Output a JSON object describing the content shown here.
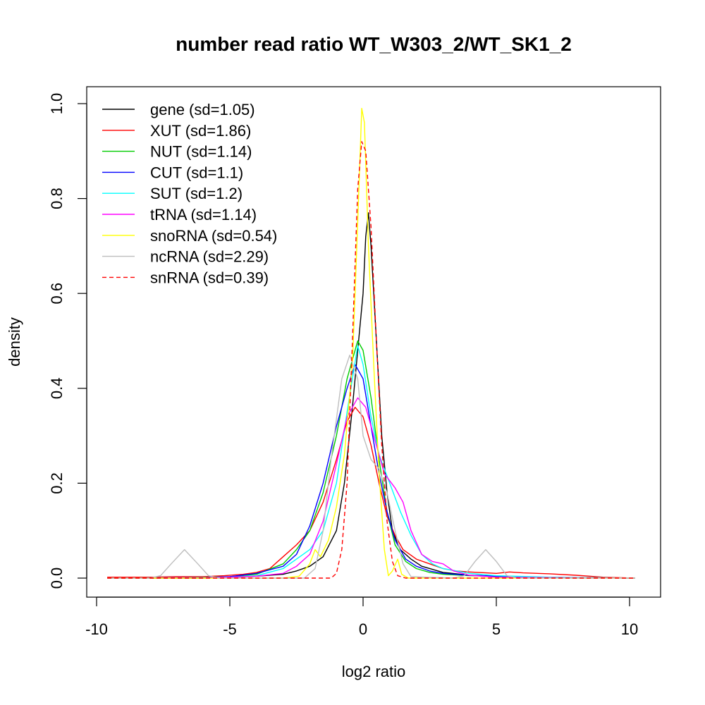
{
  "chart_data": {
    "type": "line",
    "title": "number read ratio WT_W303_2/WT_SK1_2",
    "xlabel": "log2 ratio",
    "ylabel": "density",
    "xlim": [
      -10,
      10
    ],
    "ylim": [
      0,
      1.0
    ],
    "x_ticks": [
      -10,
      -5,
      0,
      5,
      10
    ],
    "y_ticks": [
      0.0,
      0.2,
      0.4,
      0.6,
      0.8,
      1.0
    ],
    "x_tick_labels": [
      "-10",
      "-5",
      "0",
      "5",
      "10"
    ],
    "y_tick_labels": [
      "0.0",
      "0.2",
      "0.4",
      "0.6",
      "0.8",
      "1.0"
    ],
    "grid": false,
    "legend_position": "top-left",
    "series": [
      {
        "name": "gene (sd=1.05)",
        "color": "#000000",
        "dash": "solid",
        "points": [
          [
            -9.6,
            0.0
          ],
          [
            -6,
            0.0
          ],
          [
            -5,
            0.002
          ],
          [
            -4,
            0.004
          ],
          [
            -3,
            0.008
          ],
          [
            -2.5,
            0.015
          ],
          [
            -2,
            0.025
          ],
          [
            -1.5,
            0.045
          ],
          [
            -1,
            0.1
          ],
          [
            -0.7,
            0.2
          ],
          [
            -0.4,
            0.36
          ],
          [
            -0.2,
            0.48
          ],
          [
            0,
            0.6
          ],
          [
            0.1,
            0.72
          ],
          [
            0.2,
            0.77
          ],
          [
            0.3,
            0.7
          ],
          [
            0.5,
            0.5
          ],
          [
            0.7,
            0.3
          ],
          [
            0.9,
            0.18
          ],
          [
            1.1,
            0.1
          ],
          [
            1.4,
            0.06
          ],
          [
            1.8,
            0.04
          ],
          [
            2.2,
            0.025
          ],
          [
            3,
            0.012
          ],
          [
            4,
            0.006
          ],
          [
            6,
            0.002
          ],
          [
            8,
            0.001
          ],
          [
            10.2,
            0.0
          ]
        ]
      },
      {
        "name": "XUT (sd=1.86)",
        "color": "#ff0000",
        "dash": "solid",
        "points": [
          [
            -9.6,
            0.002
          ],
          [
            -8,
            0.002
          ],
          [
            -7,
            0.003
          ],
          [
            -6,
            0.003
          ],
          [
            -5.2,
            0.005
          ],
          [
            -4.5,
            0.008
          ],
          [
            -4,
            0.012
          ],
          [
            -3.5,
            0.02
          ],
          [
            -3,
            0.045
          ],
          [
            -2.5,
            0.07
          ],
          [
            -2,
            0.1
          ],
          [
            -1.5,
            0.16
          ],
          [
            -1,
            0.25
          ],
          [
            -0.6,
            0.33
          ],
          [
            -0.3,
            0.36
          ],
          [
            0,
            0.34
          ],
          [
            0.3,
            0.28
          ],
          [
            0.6,
            0.2
          ],
          [
            0.9,
            0.13
          ],
          [
            1.2,
            0.09
          ],
          [
            1.5,
            0.06
          ],
          [
            2,
            0.04
          ],
          [
            2.5,
            0.03
          ],
          [
            3,
            0.02
          ],
          [
            3.5,
            0.015
          ],
          [
            4,
            0.013
          ],
          [
            5,
            0.01
          ],
          [
            5.5,
            0.013
          ],
          [
            6,
            0.011
          ],
          [
            7,
            0.009
          ],
          [
            8,
            0.006
          ],
          [
            9,
            0.002
          ],
          [
            10.2,
            0.0
          ]
        ]
      },
      {
        "name": "NUT (sd=1.14)",
        "color": "#00cc00",
        "dash": "solid",
        "points": [
          [
            -9.6,
            0.0
          ],
          [
            -7,
            0.001
          ],
          [
            -6,
            0.002
          ],
          [
            -5,
            0.003
          ],
          [
            -4,
            0.008
          ],
          [
            -3,
            0.03
          ],
          [
            -2.5,
            0.06
          ],
          [
            -2,
            0.1
          ],
          [
            -1.5,
            0.18
          ],
          [
            -1,
            0.3
          ],
          [
            -0.6,
            0.42
          ],
          [
            -0.2,
            0.5
          ],
          [
            0,
            0.48
          ],
          [
            0.3,
            0.38
          ],
          [
            0.6,
            0.25
          ],
          [
            0.9,
            0.14
          ],
          [
            1.2,
            0.07
          ],
          [
            1.6,
            0.035
          ],
          [
            2,
            0.02
          ],
          [
            2.5,
            0.012
          ],
          [
            3,
            0.008
          ],
          [
            4,
            0.005
          ],
          [
            6,
            0.002
          ],
          [
            10.2,
            0.0
          ]
        ]
      },
      {
        "name": "CUT (sd=1.1)",
        "color": "#0000ff",
        "dash": "solid",
        "points": [
          [
            -9.6,
            0.0
          ],
          [
            -6,
            0.001
          ],
          [
            -5,
            0.003
          ],
          [
            -4,
            0.01
          ],
          [
            -3,
            0.025
          ],
          [
            -2.5,
            0.05
          ],
          [
            -2,
            0.11
          ],
          [
            -1.5,
            0.2
          ],
          [
            -1,
            0.32
          ],
          [
            -0.6,
            0.4
          ],
          [
            -0.3,
            0.45
          ],
          [
            0,
            0.42
          ],
          [
            0.3,
            0.32
          ],
          [
            0.6,
            0.22
          ],
          [
            0.9,
            0.14
          ],
          [
            1.2,
            0.08
          ],
          [
            1.6,
            0.04
          ],
          [
            2,
            0.025
          ],
          [
            2.5,
            0.015
          ],
          [
            3,
            0.01
          ],
          [
            4,
            0.006
          ],
          [
            6,
            0.002
          ],
          [
            10.2,
            0.0
          ]
        ]
      },
      {
        "name": "SUT (sd=1.2)",
        "color": "#00ffff",
        "dash": "solid",
        "points": [
          [
            -9.6,
            0.0
          ],
          [
            -6,
            0.001
          ],
          [
            -5,
            0.002
          ],
          [
            -4,
            0.005
          ],
          [
            -3,
            0.02
          ],
          [
            -2.5,
            0.04
          ],
          [
            -2,
            0.06
          ],
          [
            -1.5,
            0.1
          ],
          [
            -1,
            0.2
          ],
          [
            -0.6,
            0.35
          ],
          [
            -0.2,
            0.49
          ],
          [
            0,
            0.45
          ],
          [
            0.3,
            0.34
          ],
          [
            0.6,
            0.26
          ],
          [
            1,
            0.2
          ],
          [
            1.4,
            0.14
          ],
          [
            1.8,
            0.09
          ],
          [
            2.2,
            0.05
          ],
          [
            2.6,
            0.03
          ],
          [
            3,
            0.02
          ],
          [
            4,
            0.01
          ],
          [
            5,
            0.005
          ],
          [
            7,
            0.002
          ],
          [
            10.2,
            0.0
          ]
        ]
      },
      {
        "name": "tRNA (sd=1.14)",
        "color": "#ff00ff",
        "dash": "solid",
        "points": [
          [
            -9.6,
            0.0
          ],
          [
            -6,
            0.001
          ],
          [
            -5,
            0.002
          ],
          [
            -4,
            0.004
          ],
          [
            -3,
            0.01
          ],
          [
            -2.5,
            0.025
          ],
          [
            -2,
            0.05
          ],
          [
            -1.5,
            0.12
          ],
          [
            -1,
            0.24
          ],
          [
            -0.6,
            0.34
          ],
          [
            -0.2,
            0.38
          ],
          [
            0.1,
            0.36
          ],
          [
            0.4,
            0.3
          ],
          [
            0.8,
            0.22
          ],
          [
            1.2,
            0.19
          ],
          [
            1.5,
            0.16
          ],
          [
            1.8,
            0.1
          ],
          [
            2.2,
            0.05
          ],
          [
            2.6,
            0.035
          ],
          [
            3,
            0.03
          ],
          [
            3.4,
            0.015
          ],
          [
            4,
            0.006
          ],
          [
            5,
            0.002
          ],
          [
            7,
            0.001
          ],
          [
            10.2,
            0.0
          ]
        ]
      },
      {
        "name": "snoRNA (sd=0.54)",
        "color": "#ffff00",
        "dash": "solid",
        "points": [
          [
            -9.6,
            0.0
          ],
          [
            -3,
            0.0
          ],
          [
            -2.4,
            0.004
          ],
          [
            -2,
            0.03
          ],
          [
            -1.8,
            0.06
          ],
          [
            -1.6,
            0.045
          ],
          [
            -1.3,
            0.08
          ],
          [
            -1,
            0.15
          ],
          [
            -0.7,
            0.26
          ],
          [
            -0.4,
            0.45
          ],
          [
            -0.2,
            0.75
          ],
          [
            -0.05,
            0.99
          ],
          [
            0.05,
            0.96
          ],
          [
            0.2,
            0.7
          ],
          [
            0.4,
            0.45
          ],
          [
            0.6,
            0.22
          ],
          [
            0.8,
            0.06
          ],
          [
            0.95,
            0.005
          ],
          [
            1.1,
            0.015
          ],
          [
            1.3,
            0.04
          ],
          [
            1.45,
            0.008
          ],
          [
            1.7,
            0.0
          ],
          [
            10.2,
            0.0
          ]
        ]
      },
      {
        "name": "ncRNA (sd=2.29)",
        "color": "#bebebe",
        "dash": "solid",
        "points": [
          [
            -9.6,
            0.0
          ],
          [
            -8,
            0.0
          ],
          [
            -7.6,
            0.005
          ],
          [
            -7.2,
            0.03
          ],
          [
            -6.7,
            0.06
          ],
          [
            -6.2,
            0.03
          ],
          [
            -5.8,
            0.005
          ],
          [
            -5.4,
            0.0
          ],
          [
            -2.2,
            0.0
          ],
          [
            -1.8,
            0.02
          ],
          [
            -1.5,
            0.1
          ],
          [
            -1.2,
            0.25
          ],
          [
            -0.8,
            0.42
          ],
          [
            -0.5,
            0.47
          ],
          [
            -0.2,
            0.42
          ],
          [
            0,
            0.3
          ],
          [
            0.3,
            0.25
          ],
          [
            0.6,
            0.23
          ],
          [
            0.9,
            0.18
          ],
          [
            1.2,
            0.1
          ],
          [
            1.5,
            0.03
          ],
          [
            1.8,
            0.003
          ],
          [
            3.4,
            0.0
          ],
          [
            3.8,
            0.005
          ],
          [
            4.2,
            0.035
          ],
          [
            4.6,
            0.06
          ],
          [
            5,
            0.035
          ],
          [
            5.4,
            0.005
          ],
          [
            5.8,
            0.0
          ],
          [
            10.2,
            0.0
          ]
        ]
      },
      {
        "name": "snRNA (sd=0.39)",
        "color": "#ff0000",
        "dash": "dashed",
        "points": [
          [
            -9.6,
            0.0
          ],
          [
            -1.2,
            0.0
          ],
          [
            -1,
            0.01
          ],
          [
            -0.8,
            0.06
          ],
          [
            -0.6,
            0.2
          ],
          [
            -0.4,
            0.5
          ],
          [
            -0.2,
            0.82
          ],
          [
            -0.05,
            0.92
          ],
          [
            0.1,
            0.9
          ],
          [
            0.3,
            0.74
          ],
          [
            0.5,
            0.5
          ],
          [
            0.7,
            0.28
          ],
          [
            0.9,
            0.12
          ],
          [
            1.1,
            0.035
          ],
          [
            1.3,
            0.005
          ],
          [
            1.6,
            0.0
          ],
          [
            10.2,
            0.0
          ]
        ]
      }
    ]
  }
}
